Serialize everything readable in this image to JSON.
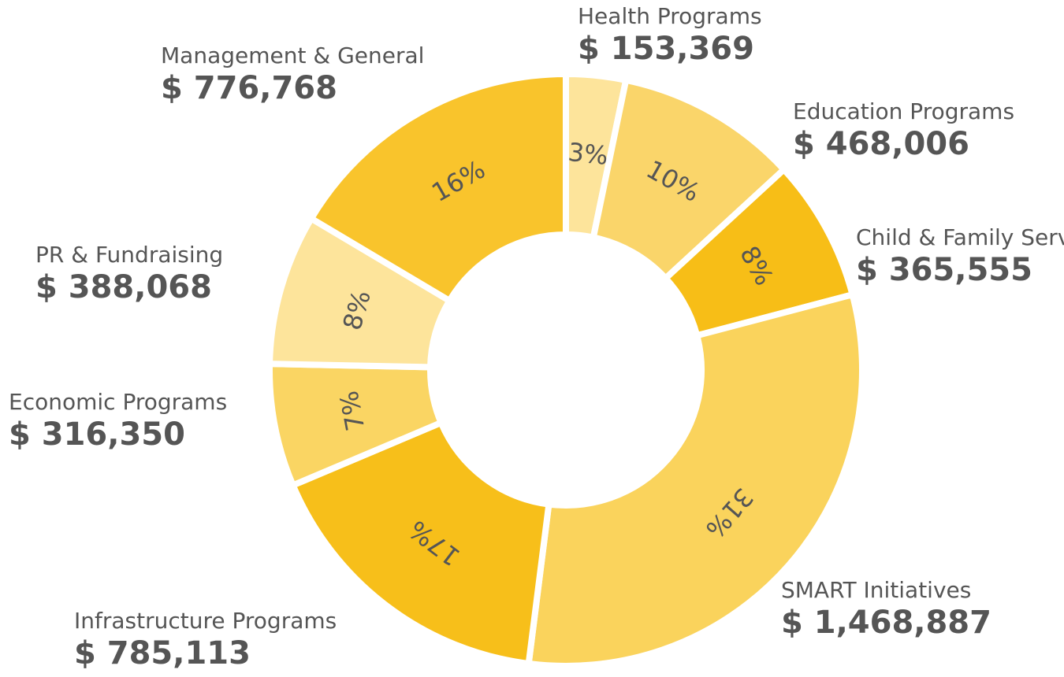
{
  "chart_data": {
    "type": "donut",
    "categories": [
      "Health Programs",
      "Education Programs",
      "Child & Family Services",
      "SMART Initiatives",
      "Infrastructure Programs",
      "Economic Programs",
      "PR & Fundraising",
      "Management & General"
    ],
    "values": [
      153369,
      468006,
      365555,
      1468887,
      785113,
      316350,
      388068,
      776768
    ],
    "value_labels": [
      "$ 153,369",
      "$ 468,006",
      "$ 365,555",
      "$ 1,468,887",
      "$ 785,113",
      "$ 316,350",
      "$ 388,068",
      "$ 776,768"
    ],
    "percents": [
      3,
      10,
      8,
      31,
      17,
      7,
      8,
      16
    ],
    "percent_labels": [
      "3%",
      "10%",
      "8%",
      "31%",
      "17%",
      "7%",
      "8%",
      "16%"
    ],
    "colors": [
      "#fde49b",
      "#fad56a",
      "#f7be17",
      "#fad35c",
      "#f7bf1a",
      "#fad563",
      "#fde49b",
      "#f9c42c"
    ]
  }
}
